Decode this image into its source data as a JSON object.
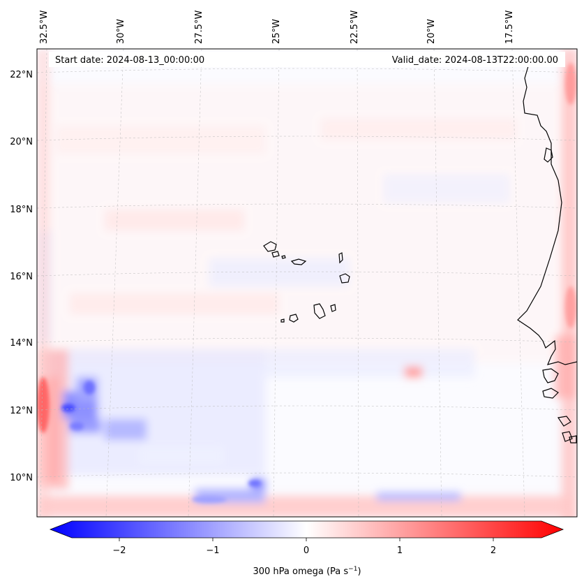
{
  "header": {
    "start_label": "Start date: 2024-08-13_00:00:00",
    "valid_label": "Valid_date: 2024-08-13T22:00:00.00"
  },
  "map": {
    "lon_labels": [
      "32.5°W",
      "30°W",
      "27.5°W",
      "25°W",
      "22.5°W",
      "20°W",
      "17.5°W"
    ],
    "lat_labels": [
      "22°N",
      "20°N",
      "18°N",
      "16°N",
      "14°N",
      "12°N",
      "10°N"
    ],
    "features": [
      "Cape Verde islands",
      "West African coastline"
    ],
    "colormap": "bwr",
    "colors": {
      "negative": "#0000ff",
      "zero": "#ffffff",
      "positive": "#ff0000",
      "coast": "#000000"
    }
  },
  "colorbar": {
    "ticks": [
      "−2",
      "−1",
      "0",
      "1",
      "2"
    ],
    "min": -2.6,
    "max": 2.6,
    "label_main": "300 hPa omega (Pa s",
    "label_sup": "−1",
    "label_end": ")"
  }
}
